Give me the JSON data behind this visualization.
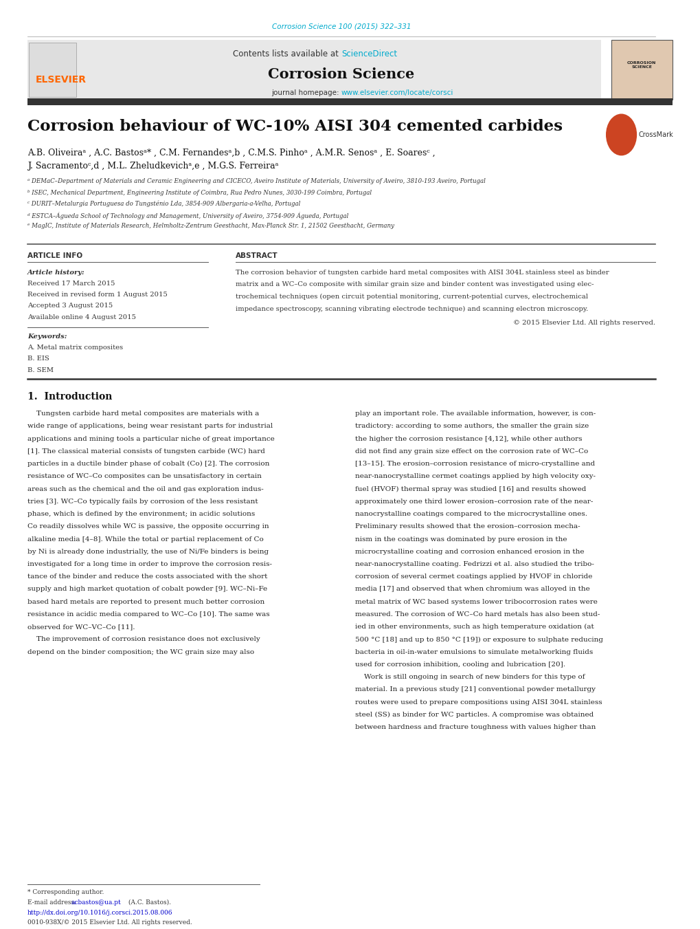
{
  "page_width": 10.2,
  "page_height": 13.51,
  "bg_color": "#ffffff",
  "journal_ref": "Corrosion Science 100 (2015) 322–331",
  "journal_ref_color": "#00aacc",
  "header_bg": "#e8e8e8",
  "header_text": "Contents lists available at ",
  "sciencedirect_text": "ScienceDirect",
  "sciencedirect_color": "#00aacc",
  "journal_name": "Corrosion Science",
  "journal_homepage_label": "journal homepage: ",
  "journal_url": "www.elsevier.com/locate/corsci",
  "journal_url_color": "#00aacc",
  "elsevier_color": "#ff6600",
  "title": "Corrosion behaviour of WC-10% AISI 304 cemented carbides",
  "authors_line1": "A.B. Oliveiraᵃ , A.C. Bastosᵃ* , C.M. Fernandesᵃ,b , C.M.S. Pinhoᵃ , A.M.R. Senosᵃ , E. Soaresᶜ ,",
  "authors_line2": "J. Sacramentoᶜ,d , M.L. Zheludkevichᵃ,e , M.G.S. Ferreiraᵃ",
  "affil_a": "ᵃ DEMaC–Department of Materials and Ceramic Engineering and CICECO, Aveiro Institute of Materials, University of Aveiro, 3810-193 Aveiro, Portugal",
  "affil_b": "ᵇ ISEC, Mechanical Department, Engineering Institute of Coimbra, Rua Pedro Nunes, 3030-199 Coimbra, Portugal",
  "affil_c": "ᶜ DURIT–Metalurgia Portuguesa do Tungsténio Lda, 3854-909 Albergaria-a-Velha, Portugal",
  "affil_d": "ᵈ ESTCA–Águeda School of Technology and Management, University of Aveiro, 3754-909 Águeda, Portugal",
  "affil_e": "ᵉ MagIC, Institute of Materials Research, Helmholtz-Zentrum Geesthacht, Max-Planck Str. 1, 21502 Geesthacht, Germany",
  "article_info_title": "ARTICLE INFO",
  "abstract_title": "ABSTRACT",
  "article_history_label": "Article history:",
  "received": "Received 17 March 2015",
  "revised": "Received in revised form 1 August 2015",
  "accepted": "Accepted 3 August 2015",
  "available": "Available online 4 August 2015",
  "keywords_label": "Keywords:",
  "keyword1": "A. Metal matrix composites",
  "keyword2": "B. EIS",
  "keyword3": "B. SEM",
  "copyright": "© 2015 Elsevier Ltd. All rights reserved.",
  "intro_title": "1.  Introduction",
  "corresponding_author_note": "* Corresponding author.",
  "email_label": "E-mail address: ",
  "email": "acbastos@ua.pt",
  "email_suffix": " (A.C. Bastos).",
  "doi": "http://dx.doi.org/10.1016/j.corsci.2015.08.006",
  "issn": "0010-938X/© 2015 Elsevier Ltd. All rights reserved.",
  "link_color": "#0000cc",
  "ref_color": "#00aacc",
  "dark_bar_color": "#333333",
  "abstract_lines": [
    "The corrosion behavior of tungsten carbide hard metal composites with AISI 304L stainless steel as binder",
    "matrix and a WC–Co composite with similar grain size and binder content was investigated using elec-",
    "trochemical techniques (open circuit potential monitoring, current-potential curves, electrochemical",
    "impedance spectroscopy, scanning vibrating electrode technique) and scanning electron microscopy."
  ],
  "intro_col1_lines": [
    "    Tungsten carbide hard metal composites are materials with a",
    "wide range of applications, being wear resistant parts for industrial",
    "applications and mining tools a particular niche of great importance",
    "[1]. The classical material consists of tungsten carbide (WC) hard",
    "particles in a ductile binder phase of cobalt (Co) [2]. The corrosion",
    "resistance of WC–Co composites can be unsatisfactory in certain",
    "areas such as the chemical and the oil and gas exploration indus-",
    "tries [3]. WC–Co typically fails by corrosion of the less resistant",
    "phase, which is defined by the environment; in acidic solutions",
    "Co readily dissolves while WC is passive, the opposite occurring in",
    "alkaline media [4–8]. While the total or partial replacement of Co",
    "by Ni is already done industrially, the use of Ni/Fe binders is being",
    "investigated for a long time in order to improve the corrosion resis-",
    "tance of the binder and reduce the costs associated with the short",
    "supply and high market quotation of cobalt powder [9]. WC–Ni–Fe",
    "based hard metals are reported to present much better corrosion",
    "resistance in acidic media compared to WC–Co [10]. The same was",
    "observed for WC–VC–Co [11].",
    "    The improvement of corrosion resistance does not exclusively",
    "depend on the binder composition; the WC grain size may also"
  ],
  "intro_col2_lines": [
    "play an important role. The available information, however, is con-",
    "tradictory: according to some authors, the smaller the grain size",
    "the higher the corrosion resistance [4,12], while other authors",
    "did not find any grain size effect on the corrosion rate of WC–Co",
    "[13–15]. The erosion–corrosion resistance of micro-crystalline and",
    "near-nanocrystalline cermet coatings applied by high velocity oxy-",
    "fuel (HVOF) thermal spray was studied [16] and results showed",
    "approximately one third lower erosion–corrosion rate of the near-",
    "nanocrystalline coatings compared to the microcrystalline ones.",
    "Preliminary results showed that the erosion–corrosion mecha-",
    "nism in the coatings was dominated by pure erosion in the",
    "microcrystalline coating and corrosion enhanced erosion in the",
    "near-nanocrystalline coating. Fedrizzi et al. also studied the tribo-",
    "corrosion of several cermet coatings applied by HVOF in chloride",
    "media [17] and observed that when chromium was alloyed in the",
    "metal matrix of WC based systems lower tribocorrosion rates were",
    "measured. The corrosion of WC–Co hard metals has also been stud-",
    "ied in other environments, such as high temperature oxidation (at",
    "500 °C [18] and up to 850 °C [19]) or exposure to sulphate reducing",
    "bacteria in oil-in-water emulsions to simulate metalworking fluids",
    "used for corrosion inhibition, cooling and lubrication [20].",
    "    Work is still ongoing in search of new binders for this type of",
    "material. In a previous study [21] conventional powder metallurgy",
    "routes were used to prepare compositions using AISI 304L stainless",
    "steel (SS) as binder for WC particles. A compromise was obtained",
    "between hardness and fracture toughness with values higher than"
  ]
}
